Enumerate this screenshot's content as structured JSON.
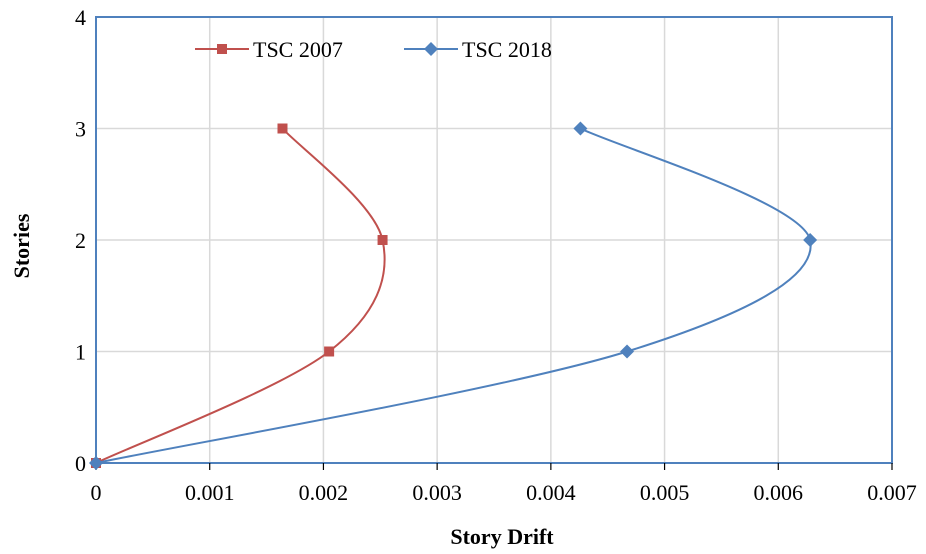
{
  "chart_data": {
    "type": "line",
    "title": "",
    "xlabel": "Story Drift",
    "ylabel": "Stories",
    "xlim": [
      0,
      0.007
    ],
    "ylim": [
      0,
      4
    ],
    "x_ticks": [
      "0",
      "0.001",
      "0.002",
      "0.003",
      "0.004",
      "0.005",
      "0.006",
      "0.007"
    ],
    "y_ticks": [
      "0",
      "1",
      "2",
      "3",
      "4"
    ],
    "grid": true,
    "legend_position": "top-left",
    "smoothed": true,
    "series": [
      {
        "name": "TSC 2007",
        "color": "#c0504d",
        "marker": "square",
        "x": [
          0,
          0.00205,
          0.00252,
          0.00164
        ],
        "y": [
          0,
          1,
          2,
          3
        ]
      },
      {
        "name": "TSC 2018",
        "color": "#4f81bd",
        "marker": "diamond",
        "x": [
          0,
          0.00467,
          0.00628,
          0.00426
        ],
        "y": [
          0,
          1,
          2,
          3
        ]
      }
    ],
    "frame_color": "#4f81bd",
    "grid_color": "#d9d9d9"
  }
}
